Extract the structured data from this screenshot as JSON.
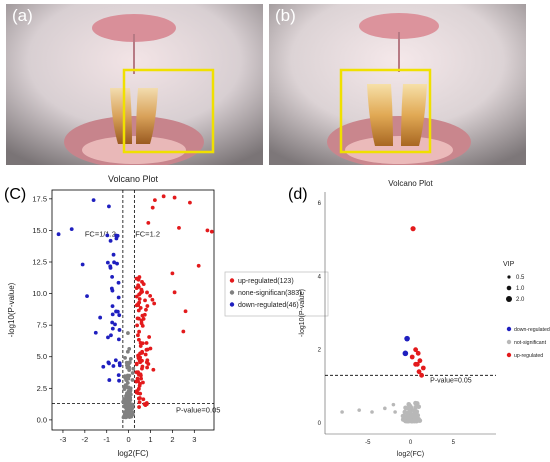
{
  "panels": {
    "a": "(a)",
    "b": "(b)",
    "c": "(C)",
    "d": "(d)"
  },
  "colors": {
    "up": "#e31a1c",
    "down": "#1f1fbf",
    "none": "#808080",
    "box": "#f0e000"
  },
  "chart_data": [
    {
      "type": "scatter",
      "title": "Volcano Plot",
      "xlabel": "log2(FC)",
      "ylabel": "-log10(P-value)",
      "xlim": [
        -3.5,
        3.9
      ],
      "ylim": [
        -0.8,
        18.2
      ],
      "xticks": [
        -3,
        -2,
        -1,
        0,
        1,
        2,
        3
      ],
      "yticks": [
        0.0,
        2.5,
        5.0,
        7.5,
        10.0,
        12.5,
        15.0,
        17.5
      ],
      "ytick_labels": [
        "0.0",
        "2.5",
        "5.0",
        "7.5",
        "10.0",
        "12.5",
        "15.0",
        "17.5"
      ],
      "threshold_labels": {
        "fc_low": "FC=1/1.2",
        "fc_high": "FC=1.2",
        "p": "P-value=0.05"
      },
      "thresholds": {
        "fc_low": -0.263,
        "fc_high": 0.263,
        "p": 1.3
      },
      "legend": {
        "placement": "right"
      },
      "series": [
        {
          "name": "up-regulated(123)",
          "color": "#e31a1c",
          "count": 123
        },
        {
          "name": "none-significan(383)",
          "color": "#808080",
          "count": 383
        },
        {
          "name": "down-regulated(46)",
          "color": "#1f1fbf",
          "count": 46
        }
      ],
      "highlight_points": {
        "up": [
          [
            1.2,
            17.4
          ],
          [
            1.6,
            17.7
          ],
          [
            2.1,
            17.6
          ],
          [
            2.8,
            17.2
          ],
          [
            3.6,
            15.0
          ],
          [
            3.8,
            14.9
          ],
          [
            1.1,
            16.8
          ],
          [
            2.3,
            15.2
          ],
          [
            0.9,
            15.6
          ],
          [
            3.2,
            12.2
          ],
          [
            2.0,
            11.6
          ],
          [
            2.1,
            10.1
          ],
          [
            2.6,
            8.6
          ],
          [
            2.5,
            7.0
          ]
        ],
        "down": [
          [
            -3.2,
            14.7
          ],
          [
            -2.6,
            15.1
          ],
          [
            -1.6,
            17.4
          ],
          [
            -2.1,
            12.3
          ],
          [
            -1.9,
            9.8
          ],
          [
            -1.5,
            6.9
          ],
          [
            -1.3,
            8.1
          ],
          [
            -0.9,
            16.9
          ]
        ]
      }
    },
    {
      "type": "scatter",
      "title": "Volcano Plot",
      "xlabel": "log2(FC)",
      "ylabel": "-log10(P-value)",
      "xlim": [
        -10,
        10
      ],
      "ylim": [
        -0.3,
        6.3
      ],
      "xticks": [
        -5,
        0,
        5
      ],
      "yticks": [
        0,
        2,
        4,
        6
      ],
      "threshold_labels": {
        "p": "P-value=0.05"
      },
      "thresholds": {
        "p": 1.3
      },
      "legend": {
        "placement": "right",
        "size_title": "VIP",
        "size_entries": [
          "0.5",
          "1.0",
          "2.0"
        ],
        "color_entries": [
          "down-regulated",
          "not-significant",
          "up-regulated"
        ]
      },
      "points": {
        "up": [
          [
            0.3,
            5.3
          ],
          [
            0.6,
            2.0
          ],
          [
            0.9,
            1.9
          ],
          [
            1.1,
            1.7
          ],
          [
            1.5,
            1.5
          ],
          [
            1.0,
            1.4
          ],
          [
            0.6,
            1.6
          ],
          [
            0.2,
            1.8
          ],
          [
            0.8,
            1.6
          ],
          [
            1.3,
            1.3
          ]
        ],
        "down": [
          [
            -0.4,
            2.3
          ],
          [
            -0.6,
            1.9
          ]
        ],
        "none": [
          [
            -8,
            0.3
          ],
          [
            -6,
            0.35
          ],
          [
            -4.5,
            0.3
          ],
          [
            -3,
            0.4
          ],
          [
            -2,
            0.5
          ],
          [
            -1.8,
            0.3
          ]
        ]
      }
    }
  ]
}
